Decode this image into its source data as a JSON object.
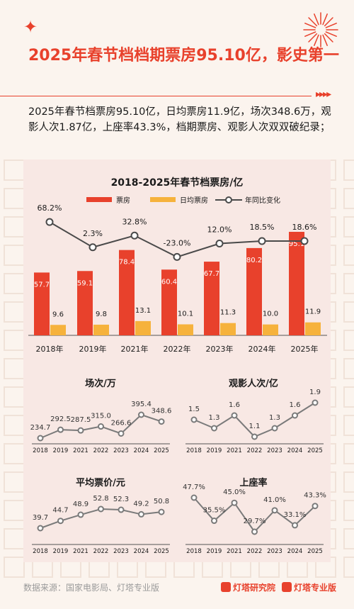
{
  "header": {
    "title": "2025年春节档档期票房95.10亿，影史第一",
    "summary": "2025年春节档票房95.10亿，日均票房11.9亿，场次348.6万，观影人次1.87亿，上座率43.3%，档期票房、观影人次双双破纪录；"
  },
  "footer": {
    "source": "数据来源：国家电影局、灯塔专业版",
    "brand1": "灯塔研究院",
    "brand2": "灯塔专业版"
  },
  "colors": {
    "accent": "#e8412c",
    "bar_primary": "#e8412c",
    "bar_secondary": "#f6b23c",
    "line": "#4a4a4a",
    "small_line": "#7a7a7a"
  },
  "icons": [
    "sparkle-icon",
    "firework-icon",
    "arrows-icon"
  ],
  "chart_data": [
    {
      "type": "bar",
      "title": "2018-2025年春节档票房/亿",
      "categories": [
        "2018年",
        "2019年",
        "2021年",
        "2022年",
        "2023年",
        "2024年",
        "2025年"
      ],
      "series": [
        {
          "name": "票房",
          "kind": "bar",
          "values": [
            57.7,
            59.1,
            78.4,
            60.4,
            67.7,
            80.2,
            95.1
          ]
        },
        {
          "name": "日均票房",
          "kind": "bar",
          "values": [
            9.6,
            9.8,
            13.1,
            10.1,
            11.3,
            10.0,
            11.9
          ]
        },
        {
          "name": "年同比变化",
          "kind": "line",
          "values": [
            68.2,
            2.3,
            32.8,
            -23.0,
            12.0,
            18.5,
            18.6
          ],
          "labels": [
            "68.2%",
            "2.3%",
            "32.8%",
            "-23.0%",
            "12.0%",
            "18.5%",
            "18.6%"
          ]
        }
      ],
      "legend": "top"
    },
    {
      "type": "line",
      "title": "场次/万",
      "categories": [
        "2018",
        "2019",
        "2021",
        "2022",
        "2023",
        "2024",
        "2025"
      ],
      "values": [
        234.7,
        292.5,
        287.5,
        315.0,
        266.6,
        395.4,
        348.6
      ],
      "labels": [
        "234.7",
        "292.5",
        "287.5",
        "315.0",
        "266.6",
        "395.4",
        "348.6"
      ]
    },
    {
      "type": "line",
      "title": "观影人次/亿",
      "categories": [
        "2018",
        "2019",
        "2021",
        "2022",
        "2023",
        "2024",
        "2025"
      ],
      "values": [
        1.5,
        1.3,
        1.6,
        1.1,
        1.3,
        1.6,
        1.9
      ],
      "labels": [
        "1.5",
        "1.3",
        "1.6",
        "1.1",
        "1.3",
        "1.6",
        "1.9"
      ]
    },
    {
      "type": "line",
      "title": "平均票价/元",
      "categories": [
        "2018",
        "2019",
        "2021",
        "2022",
        "2023",
        "2024",
        "2025"
      ],
      "values": [
        39.7,
        44.7,
        48.9,
        52.8,
        52.3,
        49.2,
        50.8
      ],
      "labels": [
        "39.7",
        "44.7",
        "48.9",
        "52.8",
        "52.3",
        "49.2",
        "50.8"
      ]
    },
    {
      "type": "line",
      "title": "上座率",
      "categories": [
        "2018",
        "2019",
        "2021",
        "2022",
        "2023",
        "2024",
        "2025"
      ],
      "values": [
        47.7,
        35.5,
        45.0,
        29.7,
        41.0,
        33.1,
        43.3
      ],
      "labels": [
        "47.7%",
        "35.5%",
        "45.0%",
        "29.7%",
        "41.0%",
        "33.1%",
        "43.3%"
      ]
    }
  ]
}
